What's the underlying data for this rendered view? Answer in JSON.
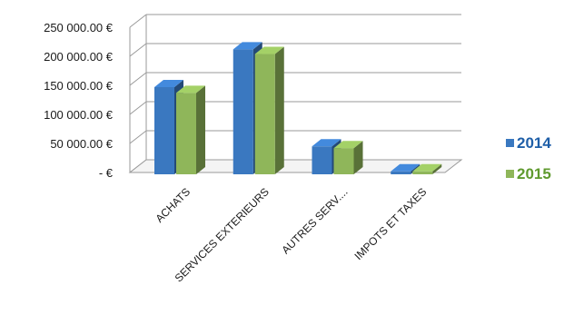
{
  "chart_data": {
    "type": "bar",
    "three_d": true,
    "categories": [
      "ACHATS",
      "SERVICES  EXTERIEURS",
      "AUTRES SERV....",
      "IMPOTS ET TAXES"
    ],
    "series": [
      {
        "name": "2014",
        "color": "#3a78c0",
        "values": [
          150000,
          215000,
          48000,
          5000
        ]
      },
      {
        "name": "2015",
        "color": "#8fb65a",
        "values": [
          140000,
          207000,
          45000,
          5000
        ]
      }
    ],
    "y_tick_labels": [
      "- €",
      "50 000.00 €",
      "100 000.00 €",
      "150 000.00 €",
      "200 000.00 €",
      "250 000.00 €"
    ],
    "y_tick_values": [
      0,
      50000,
      100000,
      150000,
      200000,
      250000
    ],
    "ylim": [
      0,
      250000
    ],
    "grid": true,
    "legend_position": "right",
    "title": "",
    "xlabel": "",
    "ylabel": ""
  },
  "legend_colors": {
    "2014": "#1f5fa8",
    "2015": "#5f9a2e"
  }
}
